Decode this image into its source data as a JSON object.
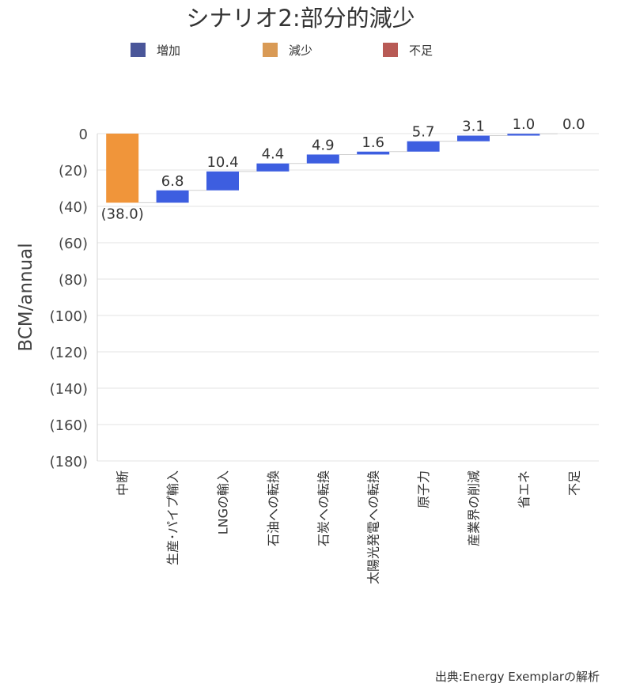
{
  "chart_data": {
    "type": "waterfall",
    "title": "シナリオ2:部分的減少",
    "ylabel": "BCM/annual",
    "ylim": [
      -180,
      0
    ],
    "yticks": [
      0,
      -20,
      -40,
      -60,
      -80,
      -100,
      -120,
      -140,
      -160,
      -180
    ],
    "ytick_labels": [
      "0",
      "(20)",
      "(40)",
      "(60)",
      "(80)",
      "(100)",
      "(120)",
      "(140)",
      "(160)",
      "(180)"
    ],
    "grid": true,
    "legend_position": "top",
    "legend": [
      {
        "name": "増加",
        "color": "#4a5699"
      },
      {
        "name": "減少",
        "color": "#d99a55"
      },
      {
        "name": "不足",
        "color": "#b85a55"
      }
    ],
    "categories": [
      "中断",
      "生産･パイプ輸入",
      "LNGの輸入",
      "石油への転換",
      "石炭への転換",
      "太陽光発電への転換",
      "原子力",
      "産業界の削減",
      "省エネ",
      "不足"
    ],
    "values": [
      -38.0,
      6.8,
      10.4,
      4.4,
      4.9,
      1.6,
      5.7,
      3.1,
      1.0,
      0.0
    ],
    "data_labels": [
      "(38.0)",
      "6.8",
      "10.4",
      "4.4",
      "4.9",
      "1.6",
      "5.7",
      "3.1",
      "1.0",
      "0.0"
    ],
    "kinds": [
      "decrease",
      "increase",
      "increase",
      "increase",
      "increase",
      "increase",
      "increase",
      "increase",
      "increase",
      "shortfall"
    ],
    "bar_colors": {
      "increase": "#3d5ee0",
      "decrease": "#f0953a",
      "shortfall": "#b85a55"
    }
  },
  "source": "出典:Energy Exemplarの解析"
}
